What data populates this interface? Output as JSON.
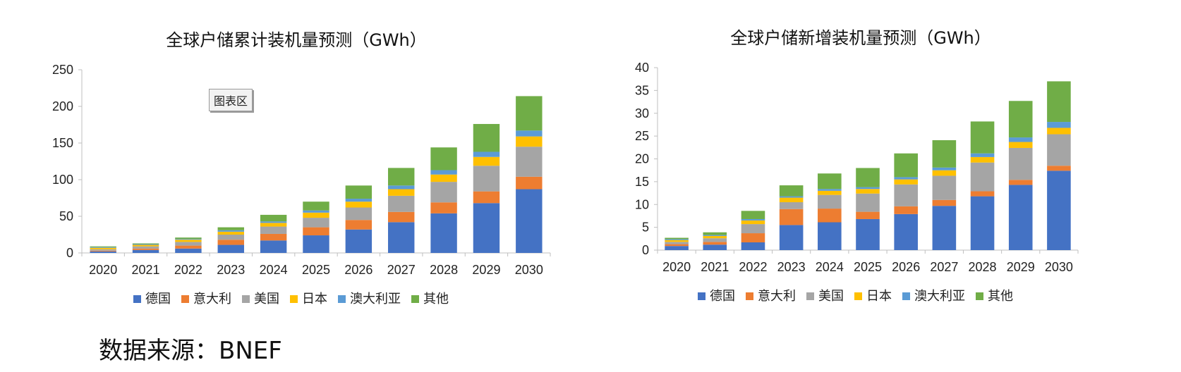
{
  "source_note": "数据来源：BNEF",
  "chart_area_tag": "图表区",
  "series_colors": {
    "德国": "#4472c4",
    "意大利": "#ed7d31",
    "美国": "#a5a5a5",
    "日本": "#ffc000",
    "澳大利亚": "#5b9bd5",
    "其他": "#70ad47"
  },
  "chart_data": [
    {
      "type": "bar",
      "stacked": true,
      "title": "全球户储累计装机量预测（GWh）",
      "categories": [
        "2020",
        "2021",
        "2022",
        "2023",
        "2024",
        "2025",
        "2026",
        "2027",
        "2028",
        "2029",
        "2030"
      ],
      "ylim": [
        0,
        250
      ],
      "yticks": [
        0,
        50,
        100,
        150,
        200,
        250
      ],
      "legend_position": "bottom",
      "series": [
        {
          "name": "德国",
          "values": [
            2,
            4,
            6,
            11,
            17,
            24,
            32,
            42,
            54,
            68,
            87
          ]
        },
        {
          "name": "意大利",
          "values": [
            1,
            2,
            4,
            7,
            9,
            11,
            13,
            14,
            15,
            16,
            17
          ]
        },
        {
          "name": "美国",
          "values": [
            2,
            3,
            5,
            7,
            10,
            13,
            17,
            22,
            28,
            35,
            41
          ]
        },
        {
          "name": "日本",
          "values": [
            2,
            2,
            3,
            4,
            5,
            7,
            8,
            9,
            10,
            12,
            14
          ]
        },
        {
          "name": "澳大利亚",
          "values": [
            1,
            1,
            1,
            2,
            2,
            3,
            4,
            5,
            6,
            7,
            8
          ]
        },
        {
          "name": "其他",
          "values": [
            1,
            1,
            2,
            4,
            9,
            12,
            18,
            24,
            31,
            38,
            47
          ]
        }
      ]
    },
    {
      "type": "bar",
      "stacked": true,
      "title": "全球户储新增装机量预测（GWh）",
      "categories": [
        "2020",
        "2021",
        "2022",
        "2023",
        "2024",
        "2025",
        "2026",
        "2027",
        "2028",
        "2029",
        "2030"
      ],
      "ylim": [
        0,
        40
      ],
      "yticks": [
        0,
        5,
        10,
        15,
        20,
        25,
        30,
        35,
        40
      ],
      "legend_position": "bottom",
      "series": [
        {
          "name": "德国",
          "values": [
            0.9,
            1.2,
            1.7,
            5.5,
            6.1,
            6.8,
            7.9,
            9.7,
            11.8,
            14.3,
            17.4
          ]
        },
        {
          "name": "意大利",
          "values": [
            0.4,
            0.6,
            2.0,
            3.5,
            3.0,
            1.6,
            1.7,
            1.3,
            1.1,
            1.1,
            1.1
          ]
        },
        {
          "name": "美国",
          "values": [
            0.5,
            0.8,
            2.0,
            1.5,
            3.0,
            4.0,
            4.8,
            5.3,
            6.3,
            7.0,
            6.9
          ]
        },
        {
          "name": "日本",
          "values": [
            0.4,
            0.5,
            0.8,
            1.0,
            0.9,
            1.0,
            1.1,
            1.2,
            1.2,
            1.3,
            1.4
          ]
        },
        {
          "name": "澳大利亚",
          "values": [
            0.2,
            0.2,
            0.3,
            0.3,
            0.4,
            0.4,
            0.5,
            0.6,
            0.8,
            1.0,
            1.3
          ]
        },
        {
          "name": "其他",
          "values": [
            0.3,
            0.6,
            1.8,
            2.4,
            3.4,
            4.2,
            5.2,
            6.0,
            7.0,
            8.0,
            8.9
          ]
        }
      ]
    }
  ]
}
